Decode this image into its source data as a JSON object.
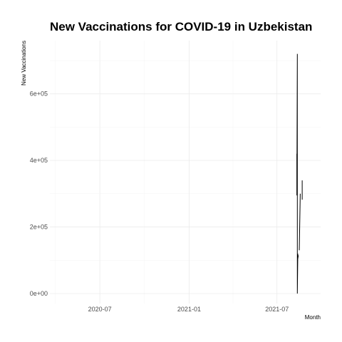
{
  "chart_data": {
    "type": "line",
    "title": "New Vaccinations for COVID-19 in Uzbekistan",
    "xlabel": "Month",
    "ylabel": "New Vaccinations",
    "x_axis_type": "date",
    "xlim": [
      "2020-03-20",
      "2021-09-29"
    ],
    "ylim": [
      -30000,
      760000
    ],
    "x_ticks": [
      {
        "label": "2020-07",
        "date": "2020-07-01"
      },
      {
        "label": "2021-01",
        "date": "2021-01-01"
      },
      {
        "label": "2021-07",
        "date": "2021-07-01"
      }
    ],
    "y_ticks": [
      {
        "label": "0e+00",
        "value": 0
      },
      {
        "label": "2e+05",
        "value": 200000
      },
      {
        "label": "4e+05",
        "value": 400000
      },
      {
        "label": "6e+05",
        "value": 600000
      }
    ],
    "grid": true,
    "x": [
      "2021-08-11",
      "2021-08-11",
      "2021-08-12",
      "2021-08-12",
      "2021-08-13",
      "2021-08-13",
      "2021-08-14"
    ],
    "series": [
      {
        "x": [
          "2021-08-11",
          "2021-08-11",
          "2021-08-12",
          "2021-08-12",
          "2021-08-13",
          "2021-08-13",
          "2021-08-14"
        ],
        "values": [
          420000,
          295000,
          720000,
          0,
          120000,
          105000,
          115000
        ],
        "color": "#000000"
      },
      {
        "x": [
          "2021-08-16",
          "2021-08-18"
        ],
        "values": [
          130000,
          300000
        ],
        "color": "#000000"
      },
      {
        "x": [
          "2021-08-22",
          "2021-08-22"
        ],
        "values": [
          340000,
          282000
        ],
        "color": "#000000"
      }
    ]
  }
}
